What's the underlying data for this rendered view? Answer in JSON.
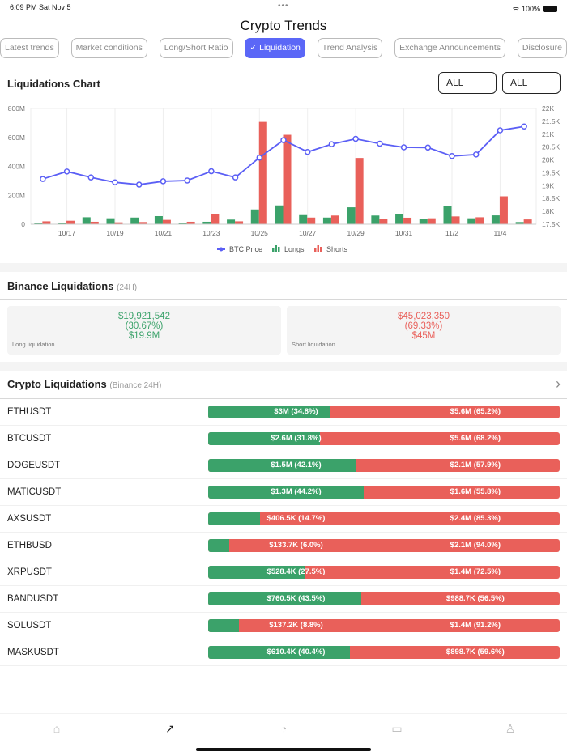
{
  "status": {
    "time": "6:09 PM  Sat Nov 5",
    "dots": "•••",
    "battery": "100%"
  },
  "header": {
    "title": "Crypto Trends"
  },
  "tabs": [
    {
      "label": "Latest trends"
    },
    {
      "label": "Market conditions"
    },
    {
      "label": "Long/Short Ratio"
    },
    {
      "label": "✓ Liquidation",
      "active": true
    },
    {
      "label": "Trend Analysis"
    },
    {
      "label": "Exchange Announcements"
    },
    {
      "label": "Disclosure"
    }
  ],
  "chart_section": {
    "title": "Liquidations Chart",
    "filter1": "ALL",
    "filter2": "ALL"
  },
  "chart_data": {
    "type": "bar+line",
    "categories": [
      "10/16",
      "10/17",
      "10/18",
      "10/19",
      "10/20",
      "10/21",
      "10/22",
      "10/23",
      "10/24",
      "10/25",
      "10/26",
      "10/27",
      "10/28",
      "10/29",
      "10/30",
      "10/31",
      "11/1",
      "11/2",
      "11/3",
      "11/4",
      "11/5"
    ],
    "tick_labels": [
      "10/17",
      "10/19",
      "10/21",
      "10/23",
      "10/25",
      "10/27",
      "10/29",
      "10/31",
      "11/2",
      "11/4"
    ],
    "y_left": {
      "ticks": [
        "0",
        "200M",
        "400M",
        "600M",
        "800M"
      ],
      "range": [
        0,
        800
      ]
    },
    "y_right": {
      "ticks": [
        "17.5K",
        "18K",
        "18.5K",
        "19K",
        "19.5K",
        "20K",
        "20.5K",
        "21K",
        "21.5K",
        "22K"
      ],
      "range": [
        17500,
        22000
      ]
    },
    "series": [
      {
        "name": "BTC Price",
        "type": "line",
        "axis": "right",
        "color": "#5b5ff5",
        "values": [
          19260,
          19550,
          19320,
          19130,
          19040,
          19170,
          19200,
          19560,
          19320,
          20090,
          20770,
          20310,
          20610,
          20820,
          20630,
          20490,
          20480,
          20150,
          20210,
          21150,
          21300
        ]
      },
      {
        "name": "Longs",
        "type": "bar",
        "axis": "left",
        "unit": "M",
        "color": "#3ba26a",
        "values": [
          10,
          10,
          48,
          41,
          46,
          56,
          9,
          17,
          32,
          102,
          130,
          63,
          46,
          117,
          60,
          69,
          39,
          126,
          41,
          61,
          15
        ]
      },
      {
        "name": "Shorts",
        "type": "bar",
        "axis": "left",
        "unit": "M",
        "color": "#e9605a",
        "values": [
          20,
          24,
          17,
          13,
          15,
          30,
          17,
          71,
          20,
          707,
          618,
          46,
          60,
          458,
          37,
          45,
          41,
          54,
          48,
          193,
          33
        ]
      }
    ],
    "grid": true,
    "legend": "bottom"
  },
  "binance": {
    "title": "Binance Liquidations",
    "sub": "(24H)",
    "long": {
      "amount": "$19,921,542",
      "pct": "(30.67%)",
      "short": "$19.9M",
      "label": "Long liquidation"
    },
    "short": {
      "amount": "$45,023,350",
      "pct": "(69.33%)",
      "short": "$45M",
      "label": "Short liquidation"
    }
  },
  "crypto": {
    "title": "Crypto Liquidations",
    "sub": "(Binance 24H)",
    "chevron": "›",
    "rows": [
      {
        "symbol": "ETHUSDT",
        "long": "$3M (34.8%)",
        "short": "$5.6M (65.2%)",
        "long_pct": 34.8
      },
      {
        "symbol": "BTCUSDT",
        "long": "$2.6M (31.8%)",
        "short": "$5.6M (68.2%)",
        "long_pct": 31.8
      },
      {
        "symbol": "DOGEUSDT",
        "long": "$1.5M (42.1%)",
        "short": "$2.1M (57.9%)",
        "long_pct": 42.1
      },
      {
        "symbol": "MATICUSDT",
        "long": "$1.3M (44.2%)",
        "short": "$1.6M (55.8%)",
        "long_pct": 44.2
      },
      {
        "symbol": "AXSUSDT",
        "long": "$406.5K (14.7%)",
        "short": "$2.4M (85.3%)",
        "long_pct": 14.7
      },
      {
        "symbol": "ETHBUSD",
        "long": "$133.7K (6.0%)",
        "short": "$2.1M (94.0%)",
        "long_pct": 6.0
      },
      {
        "symbol": "XRPUSDT",
        "long": "$528.4K (27.5%)",
        "short": "$1.4M (72.5%)",
        "long_pct": 27.5
      },
      {
        "symbol": "BANDUSDT",
        "long": "$760.5K (43.5%)",
        "short": "$988.7K (56.5%)",
        "long_pct": 43.5
      },
      {
        "symbol": "SOLUSDT",
        "long": "$137.2K (8.8%)",
        "short": "$1.4M (91.2%)",
        "long_pct": 8.8
      },
      {
        "symbol": "MASKUSDT",
        "long": "$610.4K (40.4%)",
        "short": "$898.7K (59.6%)",
        "long_pct": 40.4
      }
    ]
  },
  "nav": [
    {
      "icon": "home-icon"
    },
    {
      "icon": "trend-icon",
      "active": true
    },
    {
      "icon": "pie-chart-icon"
    },
    {
      "icon": "message-icon"
    },
    {
      "icon": "user-icon"
    }
  ]
}
